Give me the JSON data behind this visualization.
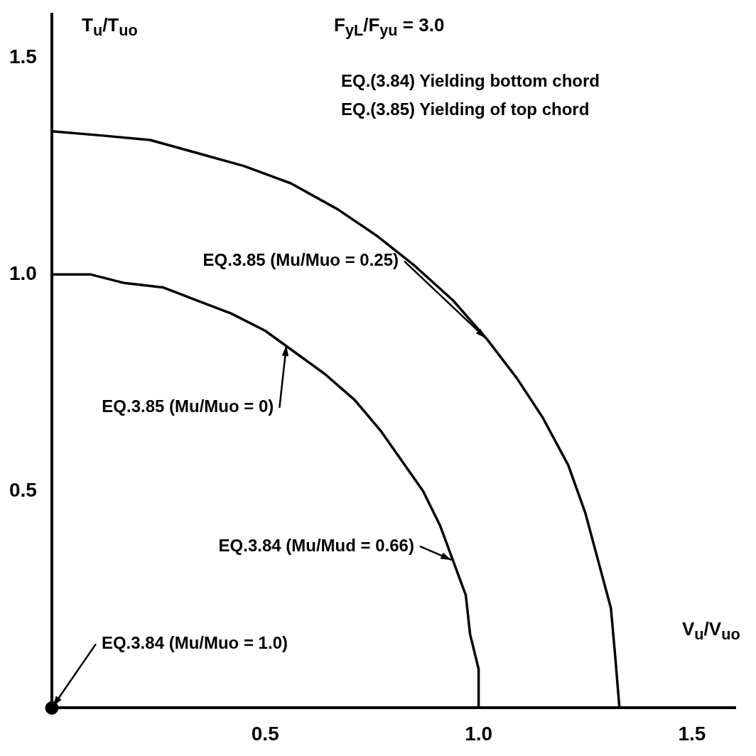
{
  "chart_data": {
    "type": "line",
    "title": "F$_{yL}$/F$_{yu}$ = 3.0",
    "xlabel": "V$_{u}$/V$_{uo}$",
    "ylabel": "T$_{u}$/T$_{uo}$",
    "xlim": [
      0,
      1.6
    ],
    "ylim": [
      0,
      1.6
    ],
    "xticks": [
      0.5,
      {
        "value": 1,
        "label": "1.0"
      },
      1.5
    ],
    "yticks": [
      0.5,
      {
        "value": 1,
        "label": "1.0"
      },
      1.5
    ],
    "grid": false,
    "legend": false,
    "marker": "none",
    "line_style": "solid",
    "series": [
      {
        "color": "#000000",
        "x": [
          1,
          1,
          0.98,
          0.97,
          0.94,
          0.91,
          0.87,
          0.82,
          0.77,
          0.71,
          0.64,
          0.57,
          0.5,
          0.42,
          0.34,
          0.26,
          0.17,
          0.09,
          0
        ],
        "values": [
          0,
          0.09,
          0.17,
          0.26,
          0.34,
          0.42,
          0.5,
          0.57,
          0.64,
          0.71,
          0.77,
          0.82,
          0.87,
          0.91,
          0.94,
          0.97,
          0.98,
          1,
          1
        ]
      },
      {
        "color": "#000000",
        "x": [
          1.33,
          1.32,
          1.31,
          1.28,
          1.25,
          1.21,
          1.15,
          1.09,
          1.02,
          0.94,
          0.85,
          0.76,
          0.67,
          0.56,
          0.45,
          0.34,
          0.23,
          0.12,
          0
        ],
        "values": [
          0,
          0.12,
          0.23,
          0.34,
          0.45,
          0.56,
          0.67,
          0.76,
          0.85,
          0.94,
          1.02,
          1.09,
          1.15,
          1.21,
          1.25,
          1.28,
          1.31,
          1.32,
          1.33
        ]
      },
      {
        "type": "scatter",
        "marker": "circle",
        "color": "#000000",
        "x": [
          0
        ],
        "values": [
          0
        ]
      }
    ],
    "annotations": [
      "EQ.(3.84) Yielding bottom chord",
      "EQ.(3.85) Yielding of top chord",
      {
        "text": "EQ.3.85 (Mu/Muo = 0.25)",
        "x": 1.02,
        "y": 0.85
      },
      {
        "text": "EQ.3.85 (Mu/Muo = 0)",
        "x": 0.55,
        "y": 0.84
      },
      {
        "text": "EQ.3.84 (Mu/Mud = 0.66)",
        "x": 0.94,
        "y": 0.34
      },
      {
        "text": "EQ.3.84 (Mu/Muo = 1.0)",
        "x": 0,
        "y": 0
      }
    ]
  }
}
